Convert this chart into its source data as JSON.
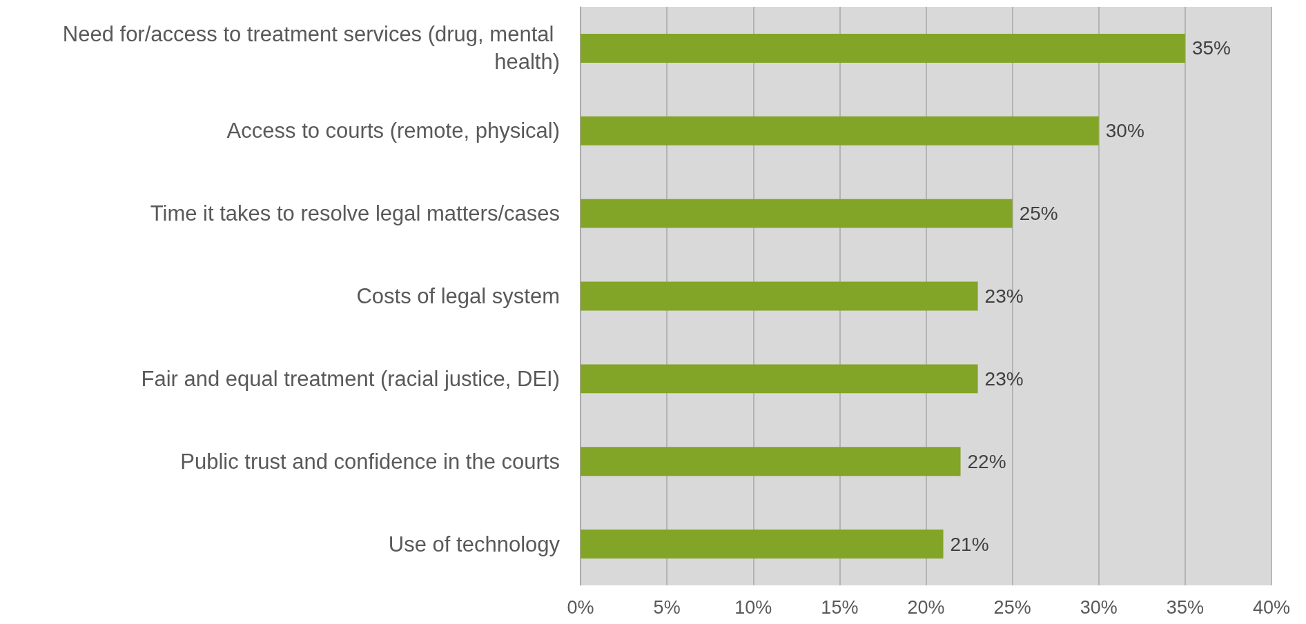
{
  "chart_data": {
    "type": "bar",
    "orientation": "horizontal",
    "categories": [
      "Need for/access to treatment services (drug, mental health)",
      "Access to courts (remote, physical)",
      "Time it takes to resolve legal matters/cases",
      "Costs of legal system",
      "Fair and equal treatment (racial justice, DEI)",
      "Public trust and confidence in the courts",
      "Use of technology"
    ],
    "values": [
      35,
      30,
      25,
      23,
      23,
      22,
      21
    ],
    "value_labels": [
      "35%",
      "30%",
      "25%",
      "23%",
      "23%",
      "22%",
      "21%"
    ],
    "color": "#82a427",
    "xlim": [
      0,
      40
    ],
    "xticks": [
      {
        "value": 0,
        "label": "0%"
      },
      {
        "value": 5,
        "label": "5%"
      },
      {
        "value": 10,
        "label": "10%"
      },
      {
        "value": 15,
        "label": "15%"
      },
      {
        "value": 20,
        "label": "20%"
      },
      {
        "value": 25,
        "label": "25%"
      },
      {
        "value": 30,
        "label": "30%"
      },
      {
        "value": 35,
        "label": "35%"
      },
      {
        "value": 40,
        "label": "40%"
      }
    ],
    "grid": "x"
  }
}
